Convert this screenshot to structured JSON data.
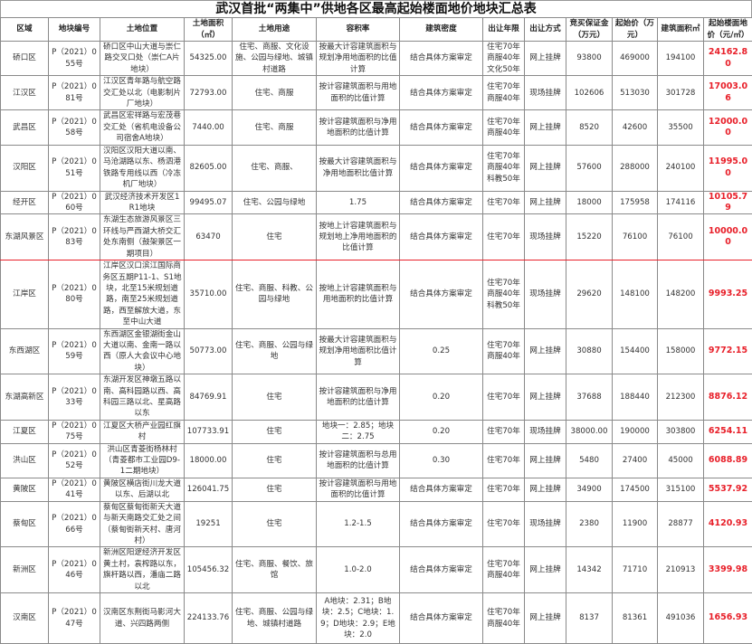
{
  "title": "武汉首批“两集中”供地各区最高起始楼面地价地块汇总表",
  "headers": [
    "区域",
    "地块编号",
    "土地位置",
    "土地面积（㎡）",
    "土地用途",
    "容积率",
    "建筑密度",
    "出让年限",
    "出让方式",
    "竞买保证金（万元）",
    "起始价（万元）",
    "建筑面积㎡",
    "起始楼面地价（元/㎡）"
  ],
  "accent_color": "#e8202a",
  "rows": [
    {
      "district": "硚口区",
      "code": "P（2021）055号",
      "location": "硚口区中山大道与崇仁路交叉口处（崇仁A片地块）",
      "area": "54325.00",
      "use": "住宅、商服、文化设施、公园与绿地、城镇村道路",
      "far": "按最大计容建筑面积与规划净用地面积的比值计算",
      "density": "结合具体方案审定",
      "term": "住宅70年 商服40年 文化50年",
      "method": "网上挂牌",
      "deposit": "93800",
      "start_price": "469000",
      "floor_area": "194100",
      "floor_price": "24162.80"
    },
    {
      "district": "江汉区",
      "code": "P（2021）081号",
      "location": "江汉区青年路与航空路交汇处以北（电影制片厂地块）",
      "area": "72793.00",
      "use": "住宅、商服",
      "far": "按计容建筑面积与用地面积的比值计算",
      "density": "结合具体方案审定",
      "term": "住宅70年 商服40年",
      "method": "现场挂牌",
      "deposit": "102606",
      "start_price": "513030",
      "floor_area": "301728",
      "floor_price": "17003.06"
    },
    {
      "district": "武昌区",
      "code": "P（2021）058号",
      "location": "武昌区宏祥路与宏茂巷交汇处（省机电设备公司宿舍A地块）",
      "area": "7440.00",
      "use": "住宅、商服",
      "far": "按计容建筑面积与净用地面积的比值计算",
      "density": "结合具体方案审定",
      "term": "住宅70年 商服40年",
      "method": "网上挂牌",
      "deposit": "8520",
      "start_price": "42600",
      "floor_area": "35500",
      "floor_price": "12000.00"
    },
    {
      "district": "汉阳区",
      "code": "P（2021）051号",
      "location": "汉阳区汉阳大道以南、马沧湖路以东、杨泗港铁路专用线以西（冷冻机厂地块）",
      "area": "82605.00",
      "use": "住宅、商服、",
      "far": "按最大计容建筑面积与净用地面积比值计算",
      "density": "结合具体方案审定",
      "term": "住宅70年 商服40年 科教50年",
      "method": "网上挂牌",
      "deposit": "57600",
      "start_price": "288000",
      "floor_area": "240100",
      "floor_price": "11995.00"
    },
    {
      "district": "经开区",
      "code": "P（2021）060号",
      "location": "武汉经济技术开发区1R1地块",
      "area": "99495.07",
      "use": "住宅、公园与绿地",
      "far": "1.75",
      "density": "结合具体方案审定",
      "term": "住宅70年",
      "method": "网上挂牌",
      "deposit": "18000",
      "start_price": "175958",
      "floor_area": "174116",
      "floor_price": "10105.79"
    },
    {
      "district": "东湖风景区",
      "code": "P（2021）083号",
      "location": "东湖生态旅游风景区三环线与严西湖大桥交汇处东南侧（鼓架景区一期项目）",
      "area": "63470",
      "use": "住宅",
      "far": "按地上计容建筑面积与规划地上净用地面积的比值计算",
      "density": "结合具体方案审定",
      "term": "住宅70年",
      "method": "现场挂牌",
      "deposit": "15220",
      "start_price": "76100",
      "floor_area": "76100",
      "floor_price": "10000.00"
    },
    {
      "district": "江岸区",
      "code": "P（2021）080号",
      "location": "江岸区汉口滨江国际商务区五期P11-1、S1地块，北至15米规划道路，南至25米规划道路，西至解放大道，东至中山大道",
      "area": "35710.00",
      "use": "住宅、商服、科教、公园与绿地",
      "far": "按地上计容建筑面积与用地面积的比值计算",
      "density": "结合具体方案审定",
      "term": "住宅70年 商服40年 科教50年",
      "method": "现场挂牌",
      "deposit": "29620",
      "start_price": "148100",
      "floor_area": "148200",
      "floor_price": "9993.25"
    },
    {
      "district": "东西湖区",
      "code": "P（2021）059号",
      "location": "东西湖区金银湖街金山大道以南、金南一路以西（原人大会议中心地块）",
      "area": "50773.00",
      "use": "住宅、商服、公园与绿地",
      "far": "按最大计容建筑面积与规划净用地面积比值计算",
      "density": "0.25",
      "term": "住宅70年 商服40年",
      "method": "网上挂牌",
      "deposit": "30880",
      "start_price": "154400",
      "floor_area": "158000",
      "floor_price": "9772.15"
    },
    {
      "district": "东湖高新区",
      "code": "P（2021）033号",
      "location": "东湖开发区神墩五路以南、高科园路以西、高科园三路以北、星高路以东",
      "area": "84769.91",
      "use": "住宅",
      "far": "按计容建筑面积与净用地面积的比值计算",
      "density": "0.20",
      "term": "住宅70年",
      "method": "网上挂牌",
      "deposit": "37688",
      "start_price": "188440",
      "floor_area": "212300",
      "floor_price": "8876.12"
    },
    {
      "district": "江夏区",
      "code": "P（2021）075号",
      "location": "江夏区大桥产业园红旗村",
      "area": "107733.91",
      "use": "住宅",
      "far": "地块一：2.85；地块二：2.75",
      "density": "0.20",
      "term": "住宅70年",
      "method": "现场挂牌",
      "deposit": "38000.00",
      "start_price": "190000",
      "floor_area": "303800",
      "floor_price": "6254.11"
    },
    {
      "district": "洪山区",
      "code": "P（2021）052号",
      "location": "洪山区青菱街杨林村（青菱都市工业园D9-1二期地块）",
      "area": "18000.00",
      "use": "住宅",
      "far": "按计容建筑面积与总用地面积的比值计算",
      "density": "0.30",
      "term": "住宅70年",
      "method": "网上挂牌",
      "deposit": "5480",
      "start_price": "27400",
      "floor_area": "45000",
      "floor_price": "6088.89"
    },
    {
      "district": "黄陂区",
      "code": "P（2021）041号",
      "location": "黄陂区横店街川龙大道以东、后湖以北",
      "area": "126041.75",
      "use": "住宅",
      "far": "按计容建筑面积与用地面积的比值计算",
      "density": "结合具体方案审定",
      "term": "住宅70年",
      "method": "网上挂牌",
      "deposit": "34900",
      "start_price": "174500",
      "floor_area": "315100",
      "floor_price": "5537.92"
    },
    {
      "district": "蔡甸区",
      "code": "P（2021）066号",
      "location": "蔡甸区蔡甸街新天大道与新天南路交汇处之间（蔡甸街新天村、唐河村）",
      "area": "19251",
      "use": "住宅",
      "far": "1.2-1.5",
      "density": "结合具体方案审定",
      "term": "住宅70年",
      "method": "现场挂牌",
      "deposit": "2380",
      "start_price": "11900",
      "floor_area": "28877",
      "floor_price": "4120.93"
    },
    {
      "district": "新洲区",
      "code": "P（2021）046号",
      "location": "新洲区阳逻经济开发区黄土村，袁榨路以东，旗杆路以西，潘庙二路以北",
      "area": "105456.32",
      "use": "住宅、商服、餐饮、旅馆",
      "far": "1.0-2.0",
      "density": "结合具体方案审定",
      "term": "住宅70年 商服40年",
      "method": "网上挂牌",
      "deposit": "14342",
      "start_price": "71710",
      "floor_area": "210913",
      "floor_price": "3399.98"
    },
    {
      "district": "汉南区",
      "code": "P（2021）047号",
      "location": "汉南区东荆街马影河大道、兴四路两侧",
      "area": "224133.76",
      "use": "住宅、商服、公园与绿地、城镇村道路",
      "far": "A地块：2.31；B地块：2.5；C地块：1.9；D地块：2.9；E地块：2.0",
      "density": "结合具体方案审定",
      "term": "住宅70年 商服40年",
      "method": "网上挂牌",
      "deposit": "8137",
      "start_price": "81361",
      "floor_area": "491036",
      "floor_price": "1656.93"
    }
  ]
}
